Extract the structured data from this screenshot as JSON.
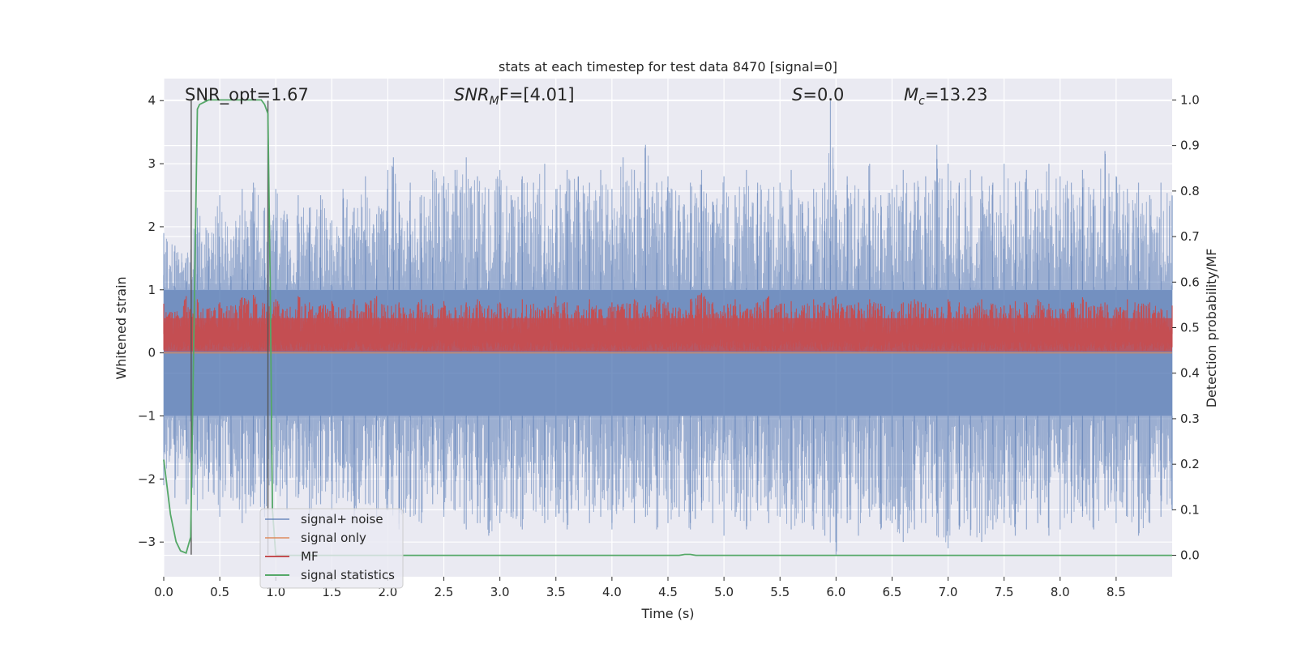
{
  "chart_data": {
    "type": "line",
    "title": "stats at each timestep for test data 8470 [signal=0]",
    "xlabel": "Time (s)",
    "ylabel": "Whitened strain",
    "ylabel_right": "Detection probability/MF",
    "xlim": [
      0.0,
      9.0
    ],
    "ylim": [
      -3.55,
      4.35
    ],
    "ylim_right": [
      -0.047,
      1.047
    ],
    "x_ticks": [
      "0.0",
      "0.5",
      "1.0",
      "1.5",
      "2.0",
      "2.5",
      "3.0",
      "3.5",
      "4.0",
      "4.5",
      "5.0",
      "5.5",
      "6.0",
      "6.5",
      "7.0",
      "7.5",
      "8.0",
      "8.5"
    ],
    "y_ticks": [
      "−3",
      "−2",
      "−1",
      "0",
      "1",
      "2",
      "3",
      "4"
    ],
    "y_ticks_right": [
      "0.0",
      "0.1",
      "0.2",
      "0.3",
      "0.4",
      "0.5",
      "0.6",
      "0.7",
      "0.8",
      "0.9",
      "1.0"
    ],
    "grid": true,
    "legend_position": "lower-left",
    "annotations": [
      {
        "id": "snr_opt",
        "text": "SNR_opt=1.67"
      },
      {
        "id": "snr_mf",
        "main": "SNR",
        "sub": "M",
        "tail": "F=[4.01]"
      },
      {
        "id": "s",
        "main": "S",
        "tail": "=0.0"
      },
      {
        "id": "mc",
        "main": "M",
        "sub": "c",
        "tail": "=13.23"
      }
    ],
    "vertical_markers": [
      0.245,
      0.93
    ],
    "series": [
      {
        "name": "signal+ noise",
        "color": "#4c72b0",
        "axis": "left",
        "description_style": "dense noise band",
        "upper_envelope": {
          "x": [
            0.0,
            0.1,
            0.2,
            0.3,
            0.4,
            0.5,
            0.6,
            0.7,
            0.75,
            0.8,
            0.9,
            1.0,
            1.1,
            1.2,
            1.3,
            1.4,
            1.5,
            1.6,
            1.7,
            1.8,
            1.9,
            2.0,
            2.05,
            2.1,
            2.2,
            2.3,
            2.4,
            2.5,
            2.6,
            2.7,
            2.8,
            2.9,
            3.0,
            3.1,
            3.2,
            3.3,
            3.4,
            3.5,
            3.6,
            3.7,
            3.8,
            3.9,
            4.0,
            4.1,
            4.2,
            4.3,
            4.4,
            4.5,
            4.6,
            4.7,
            4.8,
            4.9,
            5.0,
            5.1,
            5.2,
            5.3,
            5.4,
            5.5,
            5.6,
            5.7,
            5.8,
            5.9,
            5.95,
            6.0,
            6.1,
            6.2,
            6.3,
            6.4,
            6.5,
            6.6,
            6.7,
            6.8,
            6.9,
            7.0,
            7.1,
            7.2,
            7.3,
            7.4,
            7.5,
            7.6,
            7.7,
            7.8,
            7.9,
            8.0,
            8.1,
            8.2,
            8.3,
            8.4,
            8.5,
            8.6,
            8.7,
            8.8,
            8.9,
            9.0
          ],
          "y": [
            1.9,
            1.7,
            1.5,
            2.3,
            1.9,
            2.5,
            1.8,
            2.6,
            2.0,
            2.7,
            2.3,
            2.6,
            2.2,
            2.5,
            2.3,
            2.5,
            2.1,
            2.6,
            2.3,
            2.8,
            2.2,
            2.9,
            3.1,
            2.4,
            2.7,
            2.5,
            2.9,
            2.8,
            2.9,
            3.1,
            2.8,
            2.6,
            2.9,
            2.5,
            2.8,
            2.7,
            3.0,
            2.6,
            2.9,
            2.8,
            2.7,
            2.9,
            2.6,
            3.1,
            2.9,
            3.3,
            2.7,
            2.8,
            2.5,
            2.7,
            2.9,
            2.4,
            2.8,
            2.5,
            2.9,
            2.7,
            2.6,
            2.7,
            2.9,
            2.4,
            2.6,
            2.7,
            4.0,
            2.5,
            2.8,
            2.6,
            3.0,
            2.5,
            2.6,
            2.9,
            2.7,
            2.8,
            3.3,
            3.0,
            2.7,
            2.9,
            2.8,
            2.7,
            3.0,
            2.7,
            2.9,
            2.6,
            3.0,
            2.8,
            2.7,
            2.9,
            2.6,
            3.2,
            2.8,
            2.6,
            2.7,
            2.5,
            2.7,
            2.5
          ]
        },
        "lower_envelope": {
          "x": [
            0.0,
            0.1,
            0.2,
            0.3,
            0.4,
            0.5,
            0.6,
            0.7,
            0.8,
            0.9,
            1.0,
            1.1,
            1.2,
            1.3,
            1.4,
            1.5,
            1.6,
            1.7,
            1.8,
            1.9,
            2.0,
            2.1,
            2.2,
            2.3,
            2.4,
            2.5,
            2.6,
            2.7,
            2.8,
            2.9,
            3.0,
            3.1,
            3.2,
            3.3,
            3.4,
            3.5,
            3.6,
            3.7,
            3.8,
            3.9,
            4.0,
            4.1,
            4.2,
            4.3,
            4.4,
            4.5,
            4.6,
            4.7,
            4.8,
            4.9,
            5.0,
            5.1,
            5.2,
            5.3,
            5.4,
            5.5,
            5.6,
            5.7,
            5.8,
            5.9,
            6.0,
            6.1,
            6.2,
            6.3,
            6.4,
            6.5,
            6.6,
            6.7,
            6.8,
            6.9,
            7.0,
            7.1,
            7.2,
            7.3,
            7.4,
            7.5,
            7.6,
            7.7,
            7.8,
            7.9,
            8.0,
            8.1,
            8.2,
            8.3,
            8.4,
            8.5,
            8.6,
            8.7,
            8.8,
            8.9,
            9.0
          ],
          "y": [
            -2.1,
            -2.3,
            -2.4,
            -2.5,
            -2.2,
            -2.6,
            -2.3,
            -2.7,
            -2.4,
            -2.6,
            -2.2,
            -2.5,
            -2.3,
            -2.6,
            -2.4,
            -2.5,
            -2.3,
            -2.7,
            -2.4,
            -2.6,
            -2.5,
            -2.8,
            -2.6,
            -2.7,
            -2.4,
            -2.6,
            -2.5,
            -2.8,
            -2.7,
            -2.9,
            -2.7,
            -2.6,
            -2.8,
            -2.5,
            -2.7,
            -2.6,
            -2.8,
            -2.5,
            -2.7,
            -2.6,
            -2.8,
            -2.5,
            -2.7,
            -2.6,
            -2.8,
            -2.7,
            -2.6,
            -2.8,
            -2.5,
            -2.7,
            -2.9,
            -2.6,
            -2.8,
            -2.5,
            -2.7,
            -2.6,
            -2.8,
            -2.7,
            -2.8,
            -2.9,
            -3.2,
            -2.7,
            -2.9,
            -2.6,
            -2.8,
            -2.7,
            -3.0,
            -2.8,
            -2.7,
            -2.9,
            -3.1,
            -2.8,
            -2.9,
            -3.0,
            -2.8,
            -2.7,
            -2.9,
            -2.8,
            -2.7,
            -2.9,
            -2.8,
            -2.7,
            -2.6,
            -2.8,
            -2.5,
            -2.7,
            -2.6,
            -2.9,
            -2.7,
            -2.6,
            -2.5
          ]
        }
      },
      {
        "name": "signal only",
        "color": "#dd8452",
        "axis": "left",
        "x": [
          0.0,
          9.0
        ],
        "y": [
          0.0,
          0.0
        ]
      },
      {
        "name": "MF",
        "color": "#c44e52",
        "axis": "left",
        "band_center": 0.3,
        "band_lower": 0.02,
        "upper_envelope": {
          "x": [
            0.0,
            0.1,
            0.2,
            0.3,
            0.4,
            0.5,
            0.6,
            0.7,
            0.8,
            0.9,
            1.0,
            1.1,
            1.2,
            1.3,
            1.4,
            1.5,
            1.6,
            1.7,
            1.8,
            1.9,
            2.0,
            2.1,
            2.2,
            2.3,
            2.4,
            2.5,
            2.6,
            2.7,
            2.8,
            2.9,
            3.0,
            3.1,
            3.2,
            3.3,
            3.4,
            3.5,
            3.6,
            3.7,
            3.8,
            3.9,
            4.0,
            4.1,
            4.2,
            4.3,
            4.4,
            4.5,
            4.6,
            4.7,
            4.8,
            4.9,
            5.0,
            5.1,
            5.2,
            5.3,
            5.4,
            5.5,
            5.6,
            5.7,
            5.8,
            5.9,
            6.0,
            6.1,
            6.2,
            6.3,
            6.4,
            6.5,
            6.6,
            6.7,
            6.8,
            6.9,
            7.0,
            7.1,
            7.2,
            7.3,
            7.4,
            7.5,
            7.6,
            7.7,
            7.8,
            7.9,
            8.0,
            8.1,
            8.2,
            8.3,
            8.4,
            8.5,
            8.6,
            8.7,
            8.8,
            8.9,
            9.0
          ],
          "y": [
            0.78,
            0.65,
            0.9,
            0.85,
            0.7,
            0.8,
            0.75,
            0.88,
            0.92,
            0.78,
            0.85,
            0.7,
            0.9,
            0.8,
            0.75,
            0.82,
            0.7,
            0.85,
            0.8,
            0.9,
            0.75,
            0.8,
            0.7,
            0.85,
            0.78,
            0.82,
            0.72,
            0.8,
            0.85,
            0.75,
            0.8,
            0.7,
            0.85,
            0.78,
            0.72,
            0.9,
            0.8,
            0.75,
            0.85,
            0.7,
            0.8,
            0.78,
            0.85,
            0.75,
            0.9,
            0.8,
            0.72,
            0.85,
            0.95,
            0.8,
            0.75,
            0.85,
            0.7,
            0.8,
            0.9,
            0.78,
            0.82,
            0.75,
            0.85,
            0.8,
            0.9,
            0.75,
            0.8,
            0.85,
            0.78,
            0.7,
            0.8,
            0.85,
            0.78,
            0.72,
            0.85,
            0.8,
            0.7,
            0.85,
            0.78,
            0.75,
            0.82,
            0.8,
            0.85,
            0.78,
            0.7,
            0.8,
            0.88,
            0.75,
            0.8,
            0.72,
            0.85,
            0.78,
            0.8,
            0.7,
            0.75
          ]
        }
      },
      {
        "name": "signal statistics",
        "color": "#55a868",
        "axis": "right",
        "x": [
          0.0,
          0.06,
          0.11,
          0.15,
          0.2,
          0.24,
          0.27,
          0.3,
          0.32,
          0.4,
          0.5,
          0.6,
          0.7,
          0.8,
          0.87,
          0.9,
          0.93,
          0.95,
          0.97,
          1.0,
          1.5,
          2.0,
          2.5,
          3.0,
          3.5,
          4.0,
          4.5,
          4.6,
          4.65,
          4.7,
          4.75,
          5.0,
          5.5,
          6.0,
          6.5,
          7.0,
          7.5,
          8.0,
          8.5,
          9.0
        ],
        "y": [
          0.21,
          0.09,
          0.03,
          0.01,
          0.005,
          0.04,
          0.5,
          0.98,
          0.99,
          1.0,
          1.0,
          1.0,
          1.0,
          1.0,
          1.0,
          0.99,
          0.97,
          0.6,
          0.1,
          0.0,
          0.0,
          0.0,
          0.0,
          0.0,
          0.0,
          0.0,
          0.0,
          0.0,
          0.002,
          0.002,
          0.0,
          0.0,
          0.0,
          0.0,
          0.0,
          0.0,
          0.0,
          0.0,
          0.0,
          0.0
        ]
      }
    ]
  }
}
